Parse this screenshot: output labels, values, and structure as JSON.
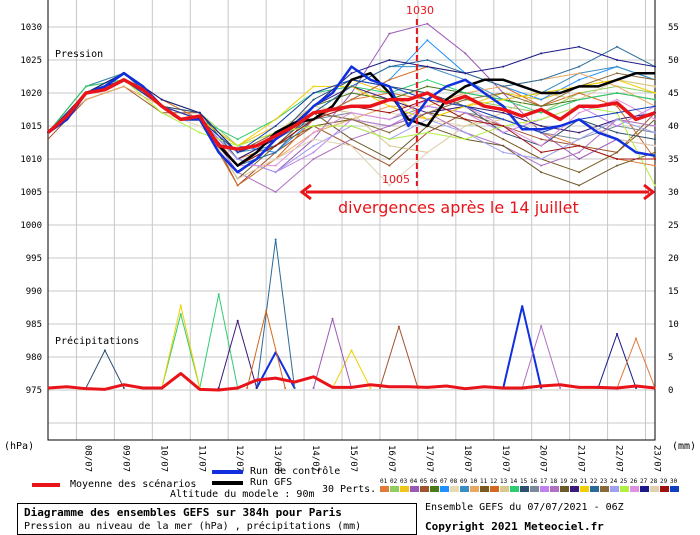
{
  "chart_data": {
    "type": "line",
    "title": "Diagramme des ensembles GEFS sur 384h pour Paris",
    "subtitle": "Pression au niveau de la mer (hPa) , précipitations (mm)",
    "run_info": "Ensemble GEFS du 07/07/2021 - 06Z",
    "copyright": "Copyright 2021 Meteociel.fr",
    "altitude": "Altitude du modele : 90m",
    "left_axis": {
      "label": "(hPa)",
      "ticks": [
        1030,
        1025,
        1020,
        1015,
        1010,
        1005,
        1000,
        995,
        990,
        985,
        980,
        975
      ],
      "range": [
        970,
        1035
      ]
    },
    "right_axis": {
      "label": "(mm)",
      "ticks": [
        55,
        50,
        45,
        40,
        35,
        30,
        25,
        20,
        15,
        10,
        5,
        0
      ],
      "range": [
        -5,
        60
      ]
    },
    "x_ticks": [
      "08/07",
      "09/07",
      "10/07",
      "11/07",
      "12/07",
      "13/07",
      "14/07",
      "15/07",
      "16/07",
      "17/07",
      "18/07",
      "19/07",
      "20/07",
      "21/07",
      "22/07",
      "23/07"
    ],
    "x_range_hours": [
      0,
      384
    ],
    "panel_labels": {
      "pressure": "Pression",
      "precip": "Précipitations"
    },
    "legend": {
      "mean": "Moyenne des scénarios",
      "control": "Run de contrôle",
      "gfs": "Run GFS",
      "perts": "30 Perts."
    },
    "colors": {
      "mean": "#e8141a",
      "control": "#1030e0",
      "gfs": "#000000",
      "grid": "#c8c8c8",
      "annotation": "#e8141a"
    },
    "annotations": {
      "top_value": "1030",
      "bottom_value": "1005",
      "text": "divergences après le 14 juillet",
      "marker_hour": 234,
      "arrow_from_hour": 160,
      "arrow_to_hour": 384,
      "arrow_level_hpa": 1005
    },
    "pressure_step_hours_main": 12,
    "mean_pressure": [
      1014,
      1016.5,
      1020,
      1020.5,
      1022,
      1020.5,
      1018,
      1016,
      1016.5,
      1012,
      1011.5,
      1012,
      1013.5,
      1015,
      1017,
      1017.5,
      1018,
      1018,
      1019,
      1019,
      1020,
      1018.5,
      1019.5,
      1018,
      1017.5,
      1016.5,
      1017.5,
      1016,
      1018,
      1018,
      1018.5,
      1016,
      1017
    ],
    "control_pressure": [
      1014,
      1016,
      1020,
      1021,
      1023,
      1021,
      1018,
      1016,
      1016,
      1011,
      1008,
      1010,
      1013,
      1015,
      1018,
      1020,
      1024,
      1022,
      1021,
      1015,
      1019,
      1021,
      1022,
      1020,
      1018,
      1014.5,
      1014.5,
      1015,
      1016,
      1014,
      1013,
      1011,
      1010.5
    ],
    "gfs_pressure": [
      1014,
      1016,
      1020,
      1021,
      1023,
      1021,
      1018,
      1016,
      1016,
      1012,
      1009,
      1011,
      1014,
      1015.5,
      1016,
      1018,
      1022,
      1023,
      1020,
      1016,
      1015,
      1019,
      1021,
      1022,
      1022,
      1021,
      1020,
      1020,
      1021,
      1021,
      1022,
      1023,
      1023
    ],
    "pert_step_hours": 24,
    "perturbations": [
      {
        "id": "01",
        "color": "#e07b39",
        "values": [
          1014,
          1020,
          1022,
          1018,
          1016,
          1010,
          1012,
          1016,
          1019,
          1020,
          1019,
          1018,
          1016,
          1014,
          1012,
          1010,
          1009
        ]
      },
      {
        "id": "02",
        "color": "#8fce5e",
        "values": [
          1014,
          1020,
          1023,
          1019,
          1017,
          1012,
          1014,
          1017,
          1016,
          1015,
          1017,
          1019,
          1018,
          1017,
          1020,
          1021,
          1020
        ]
      },
      {
        "id": "03",
        "color": "#f0c419",
        "values": [
          1014,
          1021,
          1022,
          1018,
          1016,
          1012,
          1015,
          1020,
          1022,
          1020,
          1016,
          1018,
          1020,
          1019,
          1021,
          1022,
          1021
        ]
      },
      {
        "id": "04",
        "color": "#9b59b6",
        "values": [
          1014,
          1020,
          1022,
          1018,
          1016,
          1010,
          1008,
          1013,
          1020,
          1029,
          1030.5,
          1026,
          1020,
          1014,
          1010,
          1013,
          1012
        ]
      },
      {
        "id": "05",
        "color": "#a0522d",
        "values": [
          1013,
          1019,
          1021,
          1017,
          1017,
          1006,
          1011,
          1015,
          1012,
          1009,
          1014,
          1017,
          1015,
          1013,
          1012,
          1011,
          1017
        ]
      },
      {
        "id": "06",
        "color": "#4a7a1a",
        "values": [
          1014,
          1021,
          1023,
          1019,
          1017,
          1011,
          1014,
          1018,
          1020,
          1019,
          1021,
          1020,
          1019,
          1018,
          1019,
          1020,
          1019
        ]
      },
      {
        "id": "07",
        "color": "#1e90ff",
        "values": [
          1014,
          1020,
          1022,
          1018,
          1016,
          1012,
          1011,
          1016,
          1019,
          1022,
          1028,
          1023,
          1021,
          1019,
          1022,
          1024,
          1022
        ]
      },
      {
        "id": "08",
        "color": "#e8d9b0",
        "values": [
          1014,
          1020,
          1022,
          1017,
          1015,
          1010,
          1013,
          1016,
          1018,
          1017,
          1016,
          1015,
          1016,
          1015,
          1014,
          1016,
          1015
        ]
      },
      {
        "id": "09",
        "color": "#3b8ec2",
        "values": [
          1014,
          1021,
          1023,
          1018,
          1017,
          1011,
          1012,
          1017,
          1021,
          1024,
          1024,
          1022,
          1019,
          1020,
          1023,
          1024,
          1022
        ]
      },
      {
        "id": "10",
        "color": "#e8a860",
        "values": [
          1014,
          1019,
          1021,
          1018,
          1016,
          1007,
          1010,
          1014,
          1016,
          1018,
          1018,
          1020,
          1021,
          1022,
          1023,
          1021,
          1018
        ]
      },
      {
        "id": "11",
        "color": "#7a5a20",
        "values": [
          1014,
          1020,
          1022,
          1018,
          1016,
          1009,
          1012,
          1015,
          1016,
          1015,
          1017,
          1016,
          1013,
          1010,
          1008,
          1011,
          1016
        ]
      },
      {
        "id": "12",
        "color": "#d2691e",
        "values": [
          1014,
          1020,
          1023,
          1019,
          1016,
          1006,
          1010,
          1016,
          1019,
          1022,
          1024,
          1023,
          1021,
          1018,
          1020,
          1018,
          1010
        ]
      },
      {
        "id": "13",
        "color": "#d8c890",
        "values": [
          1014,
          1020,
          1022,
          1018,
          1016,
          1012,
          1014,
          1018,
          1017,
          1012,
          1011,
          1015,
          1017,
          1020,
          1019,
          1022,
          1021
        ]
      },
      {
        "id": "14",
        "color": "#2ecc71",
        "values": [
          1014,
          1021,
          1022,
          1018,
          1016,
          1013,
          1016,
          1020,
          1021,
          1020,
          1022,
          1020,
          1019,
          1017,
          1019,
          1020,
          1019
        ]
      },
      {
        "id": "15",
        "color": "#2f4f6f",
        "values": [
          1014,
          1020,
          1022,
          1018,
          1017,
          1010,
          1013,
          1019,
          1022,
          1021,
          1020,
          1018,
          1014,
          1012,
          1016,
          1014,
          1013
        ]
      },
      {
        "id": "16",
        "color": "#7a8a9a",
        "values": [
          1014,
          1020,
          1022,
          1018,
          1016,
          1011,
          1013,
          1016,
          1017,
          1016,
          1018,
          1017,
          1016,
          1014,
          1013,
          1015,
          1014
        ]
      },
      {
        "id": "17",
        "color": "#c080f0",
        "values": [
          1014,
          1020,
          1022,
          1018,
          1016,
          1010,
          1008,
          1011,
          1016,
          1015,
          1018,
          1017,
          1014,
          1016,
          1018,
          1015,
          1018
        ]
      },
      {
        "id": "18",
        "color": "#b070c0",
        "values": [
          1014,
          1020,
          1022,
          1018,
          1016,
          1008,
          1005,
          1010,
          1013,
          1015,
          1017,
          1014,
          1012,
          1009,
          1011,
          1016,
          1015
        ]
      },
      {
        "id": "19",
        "color": "#6b5a2a",
        "values": [
          1014,
          1020,
          1022,
          1018,
          1016,
          1007,
          1012,
          1017,
          1013,
          1010,
          1015,
          1013,
          1012,
          1008,
          1006,
          1009,
          1011
        ]
      },
      {
        "id": "20",
        "color": "#3a1a7a",
        "values": [
          1014,
          1020,
          1022,
          1018,
          1016,
          1010,
          1013,
          1018,
          1021,
          1019,
          1017,
          1018,
          1017,
          1015,
          1014,
          1016,
          1017
        ]
      },
      {
        "id": "21",
        "color": "#f0d000",
        "values": [
          1014,
          1020,
          1022,
          1018,
          1016,
          1012,
          1016,
          1021,
          1021,
          1018,
          1016,
          1018,
          1019,
          1020,
          1021,
          1022,
          1020
        ]
      },
      {
        "id": "22",
        "color": "#2a6a9a",
        "values": [
          1014,
          1020,
          1023,
          1018,
          1016,
          1009,
          1011,
          1017,
          1021,
          1024,
          1025,
          1023,
          1021,
          1022,
          1024,
          1027,
          1024
        ]
      },
      {
        "id": "23",
        "color": "#8b6a3a",
        "values": [
          1014,
          1020,
          1022,
          1018,
          1016,
          1011,
          1014,
          1017,
          1016,
          1014,
          1017,
          1019,
          1020,
          1018,
          1021,
          1023,
          1022
        ]
      },
      {
        "id": "24",
        "color": "#a0a0f0",
        "values": [
          1014,
          1020,
          1022,
          1018,
          1016,
          1010,
          1008,
          1012,
          1015,
          1013,
          1016,
          1014,
          1011,
          1010,
          1013,
          1016,
          1014
        ]
      },
      {
        "id": "25",
        "color": "#b0f040",
        "values": [
          1014,
          1020,
          1022,
          1017,
          1014,
          1012,
          1014,
          1015,
          1015,
          1013,
          1014,
          1013,
          1015,
          1016,
          1018,
          1017,
          1006
        ]
      },
      {
        "id": "26",
        "color": "#e090e0",
        "values": [
          1014,
          1020,
          1022,
          1018,
          1016,
          1009,
          1009,
          1014,
          1017,
          1016,
          1019,
          1018,
          1015,
          1012,
          1017,
          1019,
          1016
        ]
      },
      {
        "id": "27",
        "color": "#1a1a8a",
        "values": [
          1014,
          1020,
          1023,
          1019,
          1017,
          1011,
          1013,
          1018,
          1023,
          1025,
          1024,
          1023,
          1024,
          1026,
          1027,
          1025,
          1024
        ]
      },
      {
        "id": "28",
        "color": "#e0d0b0",
        "values": [
          1014,
          1020,
          1022,
          1018,
          1016,
          1007,
          1010,
          1013,
          1012,
          1006,
          1011,
          1015,
          1016,
          1014,
          1016,
          1013,
          1012
        ]
      },
      {
        "id": "29",
        "color": "#a01010",
        "values": [
          1014,
          1020,
          1022,
          1018,
          1016,
          1009,
          1012,
          1016,
          1018,
          1017,
          1019,
          1016,
          1015,
          1011,
          1012,
          1010,
          1010
        ]
      },
      {
        "id": "30",
        "color": "#1040c0",
        "values": [
          1014,
          1020,
          1022,
          1018,
          1016,
          1011,
          1015,
          1020,
          1022,
          1021,
          1019,
          1018,
          1016,
          1014,
          1016,
          1017,
          1018
        ]
      }
    ],
    "mean_precip_mm": [
      0.3,
      0.5,
      0.2,
      0.1,
      0.8,
      0.3,
      0.3,
      2.5,
      0.1,
      0,
      0.3,
      1.5,
      1.8,
      1.2,
      2,
      0.4,
      0.4,
      0.8,
      0.5,
      0.5,
      0.4,
      0.6,
      0.2,
      0.5,
      0.3,
      0.3,
      0.6,
      0.8,
      0.4,
      0.4,
      0.3,
      0.6,
      0.3
    ],
    "precip_peaks_hour_mm": [
      {
        "id": "control",
        "color": "#1030e0",
        "peaks": [
          [
            144,
            5.7
          ],
          [
            300,
            12.7
          ]
        ]
      },
      {
        "id": "22",
        "color": "#2a6a9a",
        "peaks": [
          [
            144,
            22.8
          ]
        ]
      },
      {
        "id": "14",
        "color": "#2ecc71",
        "peaks": [
          [
            84,
            11.5
          ],
          [
            108,
            14.5
          ]
        ]
      },
      {
        "id": "21",
        "color": "#f0d000",
        "peaks": [
          [
            84,
            12.8
          ],
          [
            192,
            6
          ]
        ]
      },
      {
        "id": "04",
        "color": "#9b59b6",
        "peaks": [
          [
            180,
            10.8
          ]
        ]
      },
      {
        "id": "18",
        "color": "#b070c0",
        "peaks": [
          [
            312,
            9.7
          ]
        ]
      },
      {
        "id": "05",
        "color": "#a0522d",
        "peaks": [
          [
            222,
            9.6
          ]
        ]
      },
      {
        "id": "20",
        "color": "#3a1a7a",
        "peaks": [
          [
            120,
            10.5
          ]
        ]
      },
      {
        "id": "12",
        "color": "#d2691e",
        "peaks": [
          [
            138,
            12
          ]
        ]
      },
      {
        "id": "27",
        "color": "#1a1a8a",
        "peaks": [
          [
            360,
            8.5
          ]
        ]
      },
      {
        "id": "01",
        "color": "#e07b39",
        "peaks": [
          [
            372,
            7.8
          ]
        ]
      },
      {
        "id": "15",
        "color": "#2f4f6f",
        "peaks": [
          [
            36,
            6
          ]
        ]
      }
    ]
  }
}
